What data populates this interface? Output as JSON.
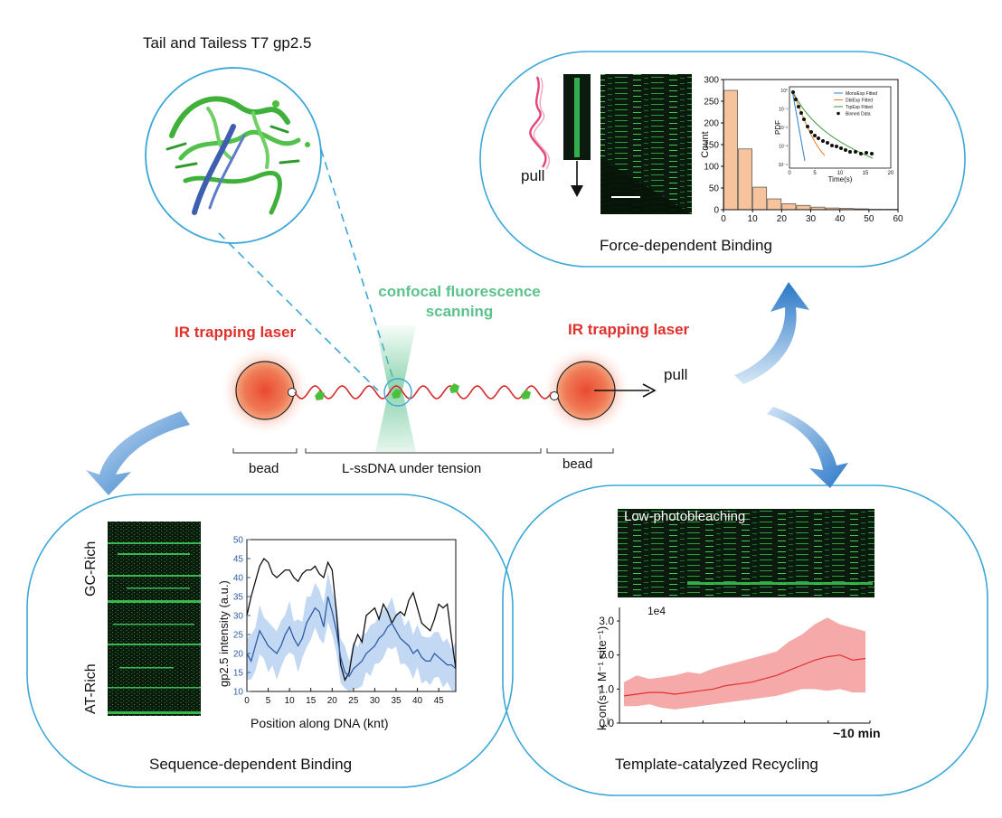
{
  "title": "Tail and Tailess T7 gp2.5",
  "center": {
    "confocal_label": "confocal fluorescence scanning",
    "laser_left": "IR trapping laser",
    "laser_right": "IR trapping laser",
    "pull": "pull",
    "bead_left": "bead",
    "bead_right": "bead",
    "dna": "L-ssDNA under tension"
  },
  "panels": {
    "force": {
      "title": "Force-dependent Binding",
      "pull": "pull",
      "hist": {
        "type": "bar",
        "ylabel": "Count",
        "yticks": [
          "0",
          "50",
          "100",
          "150",
          "200",
          "250",
          "300"
        ],
        "xticks": [
          "0",
          "10",
          "20",
          "30",
          "40",
          "50",
          "60"
        ],
        "x": [
          2.5,
          7.5,
          12.5,
          17.5,
          22.5,
          27.5,
          32.5,
          37.5,
          42.5,
          47.5,
          52.5,
          57.5
        ],
        "values": [
          275,
          140,
          52,
          25,
          14,
          10,
          6,
          4,
          3,
          2,
          1,
          1
        ],
        "xlim": [
          0,
          60
        ],
        "ylim": [
          0,
          300
        ]
      },
      "inset": {
        "ylabel": "PDF",
        "xlabel": "Time(s)",
        "yticks": [
          "10⁰",
          "10⁻¹",
          "10⁻²",
          "10⁻³",
          "10⁻⁴"
        ],
        "xticks": [
          "0",
          "5",
          "10",
          "15",
          "20"
        ],
        "legend": [
          "MonoExp Fitted",
          "DblExp Fitted",
          "TrpExp Fitted",
          "Binned Data"
        ]
      }
    },
    "sequence": {
      "title": "Sequence-dependent Binding",
      "gc_label": "GC-Rich",
      "at_label": "AT-Rich",
      "chart_data": {
        "type": "line",
        "ylabel": "gp2.5 intensity (a.u.)",
        "xlabel": "Position along DNA (knt)",
        "xlim": [
          0,
          49
        ],
        "ylim": [
          10,
          50
        ],
        "yticks": [
          "10",
          "15",
          "20",
          "25",
          "30",
          "35",
          "40",
          "45",
          "50"
        ],
        "xticks": [
          "0",
          "5",
          "10",
          "15",
          "20",
          "25",
          "30",
          "35",
          "40",
          "45"
        ],
        "x": [
          0,
          1,
          2,
          3,
          4,
          5,
          6,
          7,
          8,
          9,
          10,
          11,
          12,
          13,
          14,
          15,
          16,
          17,
          18,
          19,
          20,
          21,
          22,
          23,
          24,
          25,
          26,
          27,
          28,
          29,
          30,
          31,
          32,
          33,
          34,
          35,
          36,
          37,
          38,
          39,
          40,
          41,
          42,
          43,
          44,
          45,
          46,
          47,
          48,
          49
        ],
        "series": [
          {
            "values": [
              30,
              35,
              39,
              43,
              45,
              44,
              41,
              40,
              41,
              42,
              42,
              40,
              39,
              41,
              42,
              42,
              43,
              41,
              40,
              44,
              42,
              31,
              17,
              13,
              15,
              22,
              25,
              23,
              30,
              31,
              32,
              29,
              33,
              31,
              28,
              30,
              31,
              30,
              34,
              36,
              32,
              28,
              27,
              26,
              29,
              33,
              32,
              33,
              24,
              16
            ],
            "color": "#111111"
          },
          {
            "values": [
              20,
              18,
              22,
              26,
              24,
              22,
              21,
              20,
              22,
              25,
              27,
              24,
              22,
              24,
              28,
              30,
              32,
              31,
              27,
              35,
              31,
              26,
              19,
              15,
              14,
              16,
              17,
              18,
              20,
              21,
              22,
              24,
              25,
              27,
              28,
              26,
              24,
              23,
              22,
              20,
              21,
              19,
              18,
              18,
              20,
              19,
              18,
              17,
              17,
              16
            ],
            "color": "#2e5ea8"
          }
        ]
      }
    },
    "recycling": {
      "title": "Template-catalyzed Recycling",
      "kymo_label": "Low-photobleaching",
      "scale": "1e4",
      "time_label": "~10 min",
      "chart_data": {
        "type": "area",
        "ylabel": "k_on(s⁻¹ M⁻¹ site⁻¹)",
        "yticks": [
          "0.0",
          "1.0",
          "2.0",
          "3.0"
        ],
        "ylim": [
          0,
          3.4
        ],
        "x": [
          0,
          1,
          2,
          3,
          4,
          5,
          6,
          7,
          8,
          9,
          10,
          11,
          12,
          13,
          14,
          15,
          16,
          17,
          18,
          19
        ],
        "series": [
          {
            "name": "mean",
            "values": [
              0.8,
              0.85,
              0.9,
              0.9,
              0.85,
              0.9,
              0.95,
              1.0,
              1.1,
              1.15,
              1.2,
              1.3,
              1.4,
              1.55,
              1.7,
              1.85,
              1.95,
              2.0,
              1.85,
              1.9
            ]
          },
          {
            "name": "upper",
            "values": [
              1.2,
              1.4,
              1.3,
              1.35,
              1.4,
              1.5,
              1.45,
              1.6,
              1.7,
              1.8,
              1.9,
              2.0,
              2.1,
              2.4,
              2.6,
              2.9,
              3.1,
              2.9,
              2.8,
              2.7
            ]
          },
          {
            "name": "lower",
            "values": [
              0.5,
              0.5,
              0.55,
              0.45,
              0.4,
              0.45,
              0.5,
              0.55,
              0.6,
              0.65,
              0.7,
              0.75,
              0.8,
              0.9,
              1.0,
              1.0,
              0.95,
              1.0,
              0.9,
              0.9
            ]
          }
        ]
      }
    }
  },
  "colors": {
    "circle_border": "#3aa7d8",
    "bar_fill": "#f6c39c",
    "dna": "#d42a2a",
    "protein": "#4cbf3a",
    "kymo_bg": "#0a1a0c",
    "kymo_signal": "#3fd35a",
    "band_fill": "#f4a0a0",
    "line_red": "#e03030",
    "band_blue": "#a8c8ee",
    "arrow_blue": "#2a78c8"
  }
}
